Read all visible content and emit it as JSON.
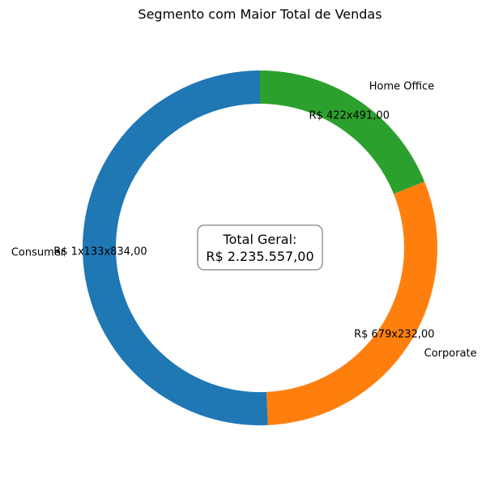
{
  "chart_data": {
    "type": "pie",
    "title": "Segmento com Maior Total de Vendas",
    "donut": true,
    "slices": [
      {
        "name": "Consumer",
        "value": 1133834.0,
        "value_label": "R$ 1x133x834,00",
        "color": "#1f77b4"
      },
      {
        "name": "Corporate",
        "value": 679232.0,
        "value_label": "R$ 679x232,00",
        "color": "#ff7f0e"
      },
      {
        "name": "Home Office",
        "value": 422491.0,
        "value_label": "R$ 422x491,00",
        "color": "#2ca02c"
      }
    ],
    "center": {
      "line1": "Total Geral:",
      "line2": "R$ 2.235.557,00"
    }
  }
}
